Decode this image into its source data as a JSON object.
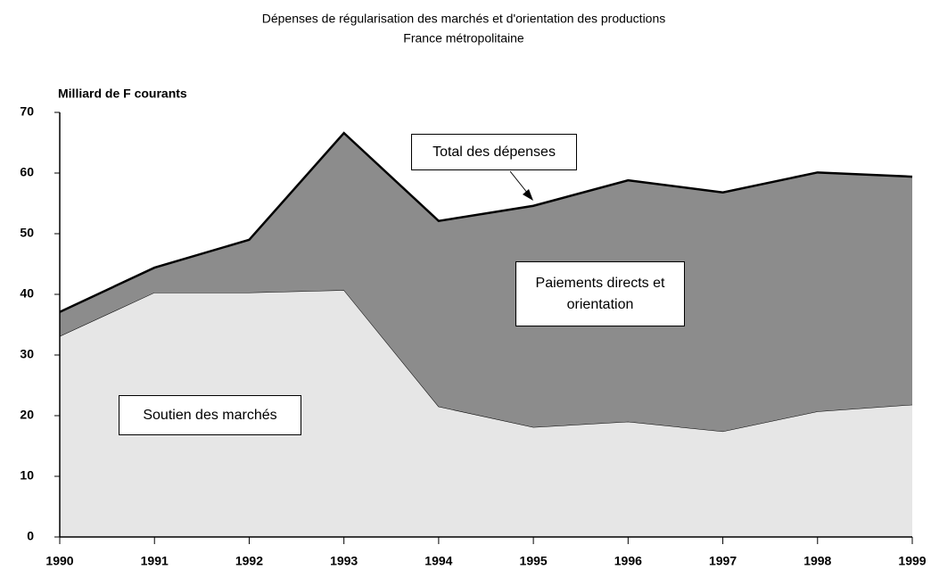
{
  "chart_data": {
    "type": "stacked_area",
    "title": "Dépenses de régularisation des marchés et d'orientation des productions",
    "subtitle": "France métropolitaine",
    "y_label": "Milliard de F courants",
    "categories": [
      "1990",
      "1991",
      "1992",
      "1993",
      "1994",
      "1995",
      "1996",
      "1997",
      "1998",
      "1999"
    ],
    "series": [
      {
        "name": "Soutien des marchés",
        "color": "#e6e6e6",
        "values": [
          33.1,
          40.3,
          40.3,
          40.7,
          21.5,
          18.1,
          19.0,
          17.4,
          20.7,
          21.8
        ]
      },
      {
        "name": "Paiements directs et orientation",
        "color": "#8c8c8c",
        "values": [
          4.0,
          4.1,
          8.7,
          25.9,
          30.6,
          36.5,
          39.8,
          39.4,
          39.4,
          37.6
        ]
      }
    ],
    "annotations": [
      "Total des dépenses"
    ],
    "ylim": [
      0,
      70
    ],
    "yticks": [
      0,
      10,
      20,
      30,
      40,
      50,
      60,
      70
    ]
  }
}
